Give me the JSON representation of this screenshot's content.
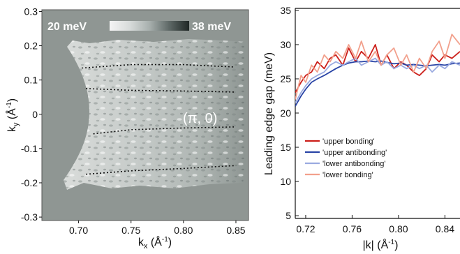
{
  "chart_data": [
    {
      "type": "heatmap",
      "x_ticks": [
        "0.70",
        "0.75",
        "0.80",
        "0.85"
      ],
      "y_ticks": [
        "0.3",
        "0.2",
        "0.1",
        "0",
        "-0.1",
        "-0.2",
        "-0.3"
      ],
      "xlim": [
        0.665,
        0.862
      ],
      "ylim": [
        -0.31,
        0.305
      ],
      "colorbar": {
        "min_label": "20 meV",
        "max_label": "38 meV"
      },
      "annotation": "(π, 0)",
      "xlabel_main": "k",
      "xlabel_sub": "x",
      "xlabel_unit": " (Å",
      "xlabel_exp": "-1",
      "xlabel_close": ")",
      "ylabel_main": "k",
      "ylabel_sub": "y",
      "ylabel_unit": " (Å",
      "ylabel_exp": "-1",
      "ylabel_close": ")",
      "dotted_lines": [
        {
          "x": [
            0.703,
            0.75,
            0.8,
            0.848
          ],
          "y": [
            0.135,
            0.145,
            0.145,
            0.138
          ]
        },
        {
          "x": [
            0.707,
            0.75,
            0.8,
            0.848
          ],
          "y": [
            0.075,
            0.07,
            0.068,
            0.065
          ]
        },
        {
          "x": [
            0.714,
            0.75,
            0.8,
            0.848
          ],
          "y": [
            -0.057,
            -0.045,
            -0.04,
            -0.037
          ]
        },
        {
          "x": [
            0.707,
            0.75,
            0.8,
            0.848
          ],
          "y": [
            -0.175,
            -0.165,
            -0.158,
            -0.15
          ]
        }
      ]
    },
    {
      "type": "line",
      "xlabel": "|k| (Å",
      "xlabel_exp": "-1",
      "xlabel_close": ")",
      "ylabel": "Leading edge gap (meV)",
      "xlim": [
        0.711,
        0.853
      ],
      "ylim": [
        4.6,
        35.3
      ],
      "x_ticks": [
        "0.72",
        "0.76",
        "0.80",
        "0.84"
      ],
      "y_ticks": [
        "5",
        "10",
        "15",
        "20",
        "25",
        "30",
        "35"
      ],
      "legend_position": "center-left",
      "series": [
        {
          "name": "'upper bonding'",
          "color": "#cc1f1a",
          "x": [
            0.711,
            0.716,
            0.72,
            0.725,
            0.73,
            0.736,
            0.741,
            0.746,
            0.752,
            0.757,
            0.763,
            0.768,
            0.774,
            0.78,
            0.785,
            0.79,
            0.796,
            0.802,
            0.807,
            0.813,
            0.818,
            0.824,
            0.829,
            0.835,
            0.84,
            0.846,
            0.853
          ],
          "y": [
            23,
            24.5,
            25.5,
            26,
            27.5,
            26.5,
            28,
            28.5,
            27,
            29.5,
            27.5,
            29,
            28,
            30,
            27,
            28.5,
            26.5,
            27.5,
            27,
            26,
            25.5,
            26.5,
            28.5,
            27.5,
            28.5,
            28,
            29
          ]
        },
        {
          "name": "'upper antibonding'",
          "color": "#2944a6",
          "x": [
            0.711,
            0.716,
            0.72,
            0.725,
            0.73,
            0.736,
            0.741,
            0.746,
            0.752,
            0.757,
            0.763,
            0.768,
            0.774,
            0.78,
            0.785,
            0.79,
            0.796,
            0.802,
            0.807,
            0.813,
            0.818,
            0.824,
            0.829,
            0.835,
            0.84,
            0.846,
            0.853
          ],
          "y": [
            21,
            22.5,
            23.5,
            24.5,
            25,
            25.5,
            26,
            26.5,
            27,
            27.3,
            27.5,
            27.5,
            27.6,
            27.5,
            27.6,
            27.4,
            27.2,
            27.3,
            27,
            27.1,
            27,
            26.9,
            27,
            27.1,
            27,
            27.2,
            27.3
          ]
        },
        {
          "name": "'lower antibonding'",
          "color": "#9aaae0",
          "x": [
            0.711,
            0.716,
            0.72,
            0.725,
            0.73,
            0.736,
            0.741,
            0.746,
            0.752,
            0.757,
            0.763,
            0.768,
            0.774,
            0.78,
            0.785,
            0.79,
            0.796,
            0.802,
            0.807,
            0.813,
            0.818,
            0.824,
            0.829,
            0.835,
            0.84,
            0.846,
            0.853
          ],
          "y": [
            21.5,
            23,
            24,
            25,
            25.5,
            26,
            27,
            27.5,
            27,
            27.5,
            28,
            27,
            27.5,
            28,
            27,
            27.5,
            26.5,
            27,
            26.5,
            27,
            26.5,
            27,
            26,
            27,
            26.5,
            27.5,
            27
          ]
        },
        {
          "name": "'lower bonding'",
          "color": "#f2a08c",
          "x": [
            0.711,
            0.716,
            0.72,
            0.725,
            0.73,
            0.736,
            0.741,
            0.746,
            0.752,
            0.757,
            0.763,
            0.768,
            0.774,
            0.78,
            0.785,
            0.79,
            0.796,
            0.802,
            0.807,
            0.813,
            0.818,
            0.824,
            0.829,
            0.835,
            0.84,
            0.846,
            0.853
          ],
          "y": [
            22,
            25.5,
            24.5,
            27,
            26,
            28.5,
            27.5,
            29,
            28,
            30,
            28,
            30.5,
            27.5,
            29,
            27,
            28.5,
            29.5,
            27,
            28.5,
            26,
            28,
            26.5,
            29,
            30.5,
            28,
            31.5,
            30
          ]
        }
      ]
    }
  ]
}
